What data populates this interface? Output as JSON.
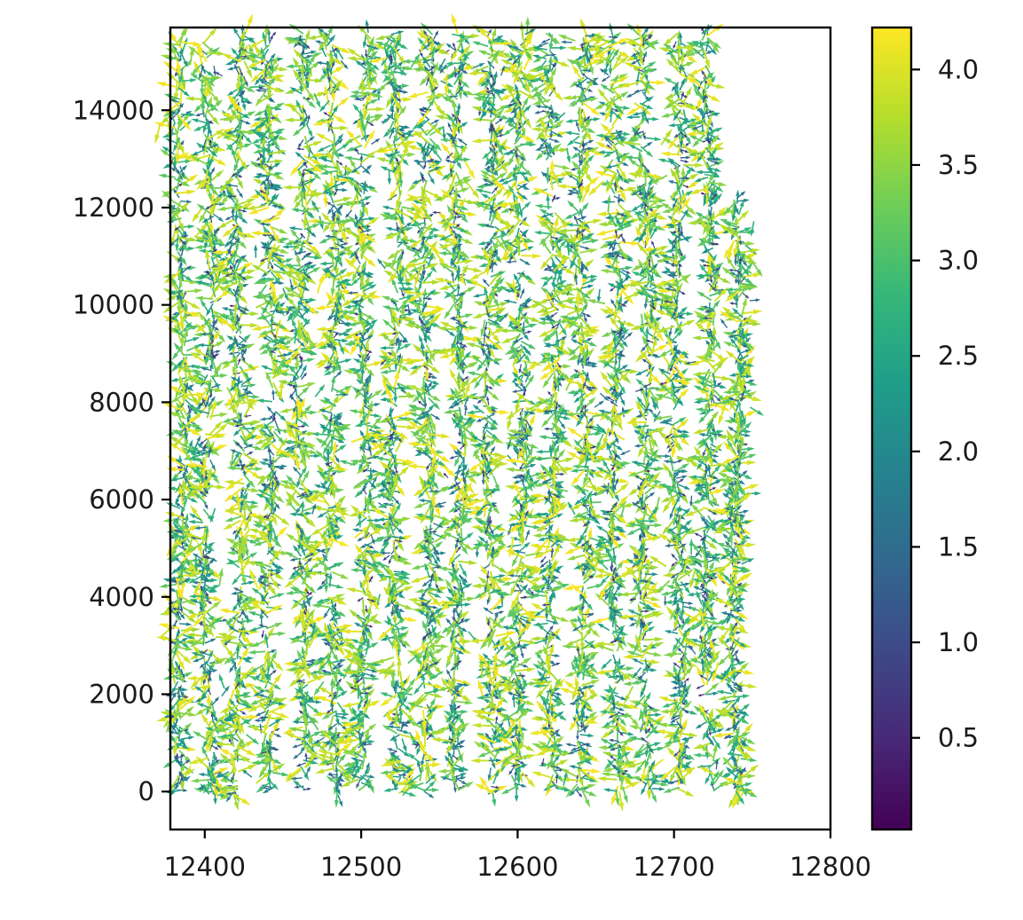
{
  "chart_data": {
    "type": "quiver",
    "title": "",
    "xlabel": "",
    "ylabel": "",
    "xlim": [
      12378,
      12800
    ],
    "ylim": [
      -780,
      15700
    ],
    "x_ticks": [
      12400,
      12500,
      12600,
      12700,
      12800
    ],
    "x_tick_labels": [
      "12400",
      "12500",
      "12600",
      "12700",
      "12800"
    ],
    "y_ticks": [
      0,
      2000,
      4000,
      6000,
      8000,
      10000,
      12000,
      14000
    ],
    "y_tick_labels": [
      "0",
      "2000",
      "4000",
      "6000",
      "8000",
      "10000",
      "12000",
      "14000"
    ],
    "grid": false,
    "colormap": "viridis",
    "colormap_stops": [
      "#440154",
      "#482878",
      "#3e4989",
      "#31688e",
      "#26828e",
      "#1f9e89",
      "#35b779",
      "#6ece58",
      "#b5de2b",
      "#fde725"
    ],
    "colorbar": {
      "vmin": 0.02,
      "vmax": 4.22,
      "ticks": [
        0.5,
        1.0,
        1.5,
        2.0,
        2.5,
        3.0,
        3.5,
        4.0
      ],
      "tick_labels": [
        "0.5",
        "1.0",
        "1.5",
        "2.0",
        "2.5",
        "3.0",
        "3.5",
        "4.0"
      ]
    },
    "series": [
      {
        "x_center": 12385,
        "y_range": [
          0,
          15500
        ],
        "magnitude_range": [
          0.3,
          4.2
        ]
      },
      {
        "x_center": 12402,
        "y_range": [
          -100,
          15400
        ],
        "magnitude_range": [
          0.3,
          4.2
        ]
      },
      {
        "x_center": 12422,
        "y_range": [
          -100,
          15600
        ],
        "magnitude_range": [
          0.3,
          4.2
        ]
      },
      {
        "x_center": 12442,
        "y_range": [
          0,
          15600
        ],
        "magnitude_range": [
          0.3,
          4.2
        ]
      },
      {
        "x_center": 12462,
        "y_range": [
          0,
          15600
        ],
        "magnitude_range": [
          0.3,
          4.2
        ]
      },
      {
        "x_center": 12482,
        "y_range": [
          -100,
          15600
        ],
        "magnitude_range": [
          0.3,
          4.2
        ]
      },
      {
        "x_center": 12502,
        "y_range": [
          0,
          15600
        ],
        "magnitude_range": [
          0.3,
          4.2
        ]
      },
      {
        "x_center": 12522,
        "y_range": [
          -100,
          15600
        ],
        "magnitude_range": [
          0.3,
          4.2
        ]
      },
      {
        "x_center": 12542,
        "y_range": [
          0,
          15600
        ],
        "magnitude_range": [
          0.3,
          4.2
        ]
      },
      {
        "x_center": 12562,
        "y_range": [
          0,
          15600
        ],
        "magnitude_range": [
          0.3,
          4.2
        ]
      },
      {
        "x_center": 12582,
        "y_range": [
          -100,
          15600
        ],
        "magnitude_range": [
          0.3,
          4.2
        ]
      },
      {
        "x_center": 12602,
        "y_range": [
          0,
          15600
        ],
        "magnitude_range": [
          0.3,
          4.2
        ]
      },
      {
        "x_center": 12622,
        "y_range": [
          0,
          15600
        ],
        "magnitude_range": [
          0.3,
          4.2
        ]
      },
      {
        "x_center": 12642,
        "y_range": [
          0,
          15600
        ],
        "magnitude_range": [
          0.3,
          4.2
        ]
      },
      {
        "x_center": 12662,
        "y_range": [
          0,
          15600
        ],
        "magnitude_range": [
          0.3,
          4.2
        ]
      },
      {
        "x_center": 12682,
        "y_range": [
          0,
          15600
        ],
        "magnitude_range": [
          0.3,
          4.2
        ]
      },
      {
        "x_center": 12702,
        "y_range": [
          0,
          15600
        ],
        "magnitude_range": [
          0.3,
          4.2
        ]
      },
      {
        "x_center": 12722,
        "y_range": [
          0,
          15600
        ],
        "magnitude_range": [
          0.3,
          4.2
        ]
      },
      {
        "x_center": 12740,
        "y_range": [
          0,
          12200
        ],
        "magnitude_range": [
          0.3,
          4.2
        ]
      }
    ]
  }
}
